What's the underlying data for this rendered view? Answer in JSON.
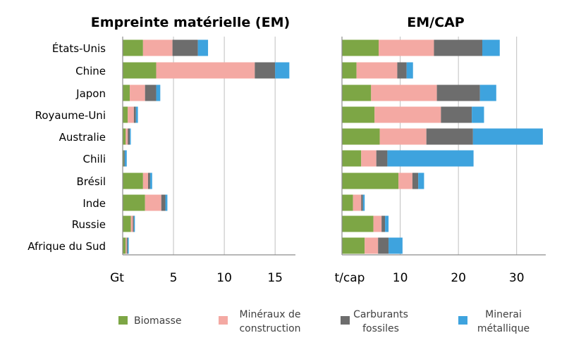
{
  "chart_data": [
    {
      "type": "bar",
      "orientation": "horizontal",
      "stacked": true,
      "title": "Empreinte matérielle (EM)",
      "unit_label": "Gt",
      "xlim": [
        0,
        17
      ],
      "ticks": [
        5,
        10,
        15
      ],
      "grid": true,
      "categories": [
        "États-Unis",
        "Chine",
        "Japon",
        "Royaume-Uni",
        "Australie",
        "Chili",
        "Brésil",
        "Inde",
        "Russie",
        "Afrique du Sud"
      ],
      "series": [
        {
          "name": "Biomasse",
          "values": [
            2.0,
            3.3,
            0.7,
            0.5,
            0.3,
            0.1,
            2.0,
            2.2,
            0.8,
            0.3
          ]
        },
        {
          "name": "Minéraux de construction",
          "values": [
            2.9,
            9.7,
            1.5,
            0.6,
            0.2,
            0.0,
            0.5,
            1.6,
            0.2,
            0.1
          ]
        },
        {
          "name": "Carburants fossiles",
          "values": [
            2.5,
            2.0,
            1.1,
            0.2,
            0.2,
            0.1,
            0.2,
            0.4,
            0.1,
            0.1
          ]
        },
        {
          "name": "Minerai métallique",
          "values": [
            1.0,
            1.4,
            0.4,
            0.2,
            0.1,
            0.2,
            0.2,
            0.2,
            0.1,
            0.1
          ]
        }
      ]
    },
    {
      "type": "bar",
      "orientation": "horizontal",
      "stacked": true,
      "title": "EM/CAP",
      "unit_label": "t/cap",
      "xlim": [
        0,
        35
      ],
      "ticks": [
        10,
        20,
        30
      ],
      "grid": true,
      "categories": [
        "États-Unis",
        "Chine",
        "Japon",
        "Royaume-Uni",
        "Australie",
        "Chili",
        "Brésil",
        "Inde",
        "Russie",
        "Afrique du Sud"
      ],
      "series": [
        {
          "name": "Biomasse",
          "values": [
            6.3,
            2.5,
            5.0,
            5.6,
            6.5,
            3.3,
            9.7,
            1.9,
            5.4,
            3.9
          ]
        },
        {
          "name": "Minéraux de construction",
          "values": [
            9.5,
            7.0,
            11.3,
            11.4,
            8.0,
            2.6,
            2.4,
            1.4,
            1.4,
            2.3
          ]
        },
        {
          "name": "Carburants fossiles",
          "values": [
            8.3,
            1.6,
            7.4,
            5.3,
            8.0,
            1.9,
            1.0,
            0.3,
            0.6,
            1.8
          ]
        },
        {
          "name": "Minerai métallique",
          "values": [
            3.0,
            1.1,
            2.8,
            2.1,
            12.0,
            14.8,
            1.0,
            0.3,
            0.6,
            2.4
          ]
        }
      ]
    }
  ],
  "legend": [
    {
      "lines": [
        "Biomasse"
      ],
      "color": "#7DA645"
    },
    {
      "lines": [
        "Minéraux de",
        "construction"
      ],
      "color": "#F4A9A3"
    },
    {
      "lines": [
        "Carburants",
        "fossiles"
      ],
      "color": "#6D6D6D"
    },
    {
      "lines": [
        "Minerai",
        "métallique"
      ],
      "color": "#3EA3DE"
    }
  ],
  "colors": {
    "biomasse": "#7DA645",
    "mineraux": "#F4A9A3",
    "carburants": "#6D6D6D",
    "minerai": "#3EA3DE",
    "grid": "#bfbfbf",
    "axis": "#8c8c8c",
    "text": "#000000"
  }
}
